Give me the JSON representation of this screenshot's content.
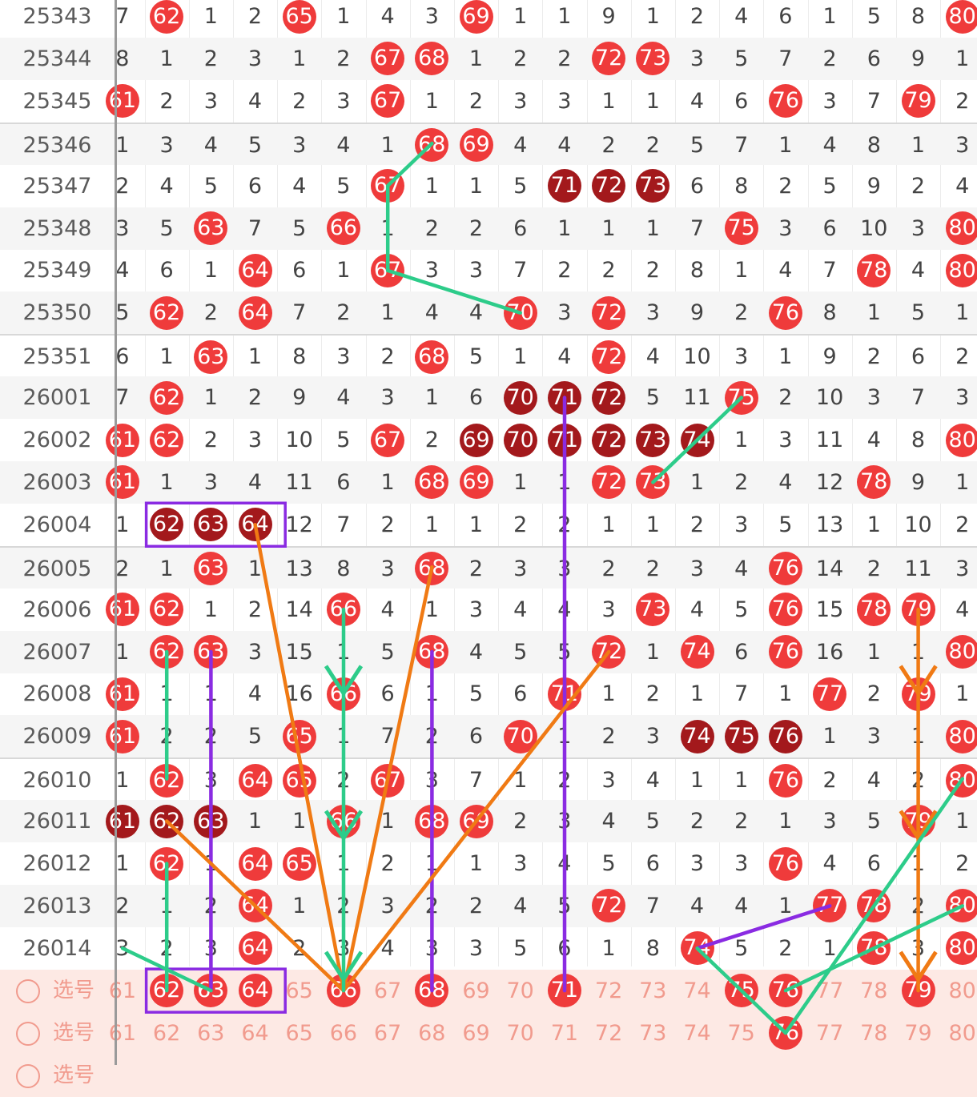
{
  "chart_data": {
    "type": "table",
    "columns": [
      61,
      62,
      63,
      64,
      65,
      66,
      67,
      68,
      69,
      70,
      71,
      72,
      73,
      74,
      75,
      76,
      77,
      78,
      79,
      80
    ],
    "rows": [
      {
        "issue": "25343",
        "values": [
          "7",
          "62",
          "1",
          "2",
          "65",
          "1",
          "4",
          "3",
          "69",
          "1",
          "1",
          "9",
          "1",
          "2",
          "4",
          "6",
          "1",
          "5",
          "8",
          "80"
        ],
        "hits": [
          62,
          65,
          69,
          80
        ],
        "dark": []
      },
      {
        "issue": "25344",
        "values": [
          "8",
          "1",
          "2",
          "3",
          "1",
          "2",
          "67",
          "68",
          "1",
          "2",
          "2",
          "72",
          "73",
          "3",
          "5",
          "7",
          "2",
          "6",
          "9",
          "1"
        ],
        "hits": [
          67,
          68,
          72,
          73
        ],
        "dark": []
      },
      {
        "issue": "25345",
        "values": [
          "61",
          "2",
          "3",
          "4",
          "2",
          "3",
          "67",
          "1",
          "2",
          "3",
          "3",
          "1",
          "1",
          "4",
          "6",
          "76",
          "3",
          "7",
          "79",
          "2"
        ],
        "hits": [
          61,
          67,
          76,
          79
        ],
        "dark": []
      },
      {
        "issue": "25346",
        "values": [
          "1",
          "3",
          "4",
          "5",
          "3",
          "4",
          "1",
          "68",
          "69",
          "4",
          "4",
          "2",
          "2",
          "5",
          "7",
          "1",
          "4",
          "8",
          "1",
          "3"
        ],
        "hits": [
          68,
          69
        ],
        "dark": []
      },
      {
        "issue": "25347",
        "values": [
          "2",
          "4",
          "5",
          "6",
          "4",
          "5",
          "67",
          "1",
          "1",
          "5",
          "71",
          "72",
          "73",
          "6",
          "8",
          "2",
          "5",
          "9",
          "2",
          "4"
        ],
        "hits": [
          67
        ],
        "dark": [
          71,
          72,
          73
        ]
      },
      {
        "issue": "25348",
        "values": [
          "3",
          "5",
          "63",
          "7",
          "5",
          "66",
          "1",
          "2",
          "2",
          "6",
          "1",
          "1",
          "1",
          "7",
          "75",
          "3",
          "6",
          "10",
          "3",
          "80"
        ],
        "hits": [
          63,
          66,
          75,
          80
        ],
        "dark": []
      },
      {
        "issue": "25349",
        "values": [
          "4",
          "6",
          "1",
          "64",
          "6",
          "1",
          "67",
          "3",
          "3",
          "7",
          "2",
          "2",
          "2",
          "8",
          "1",
          "4",
          "7",
          "78",
          "4",
          "80"
        ],
        "hits": [
          64,
          67,
          78,
          80
        ],
        "dark": []
      },
      {
        "issue": "25350",
        "values": [
          "5",
          "62",
          "2",
          "64",
          "7",
          "2",
          "1",
          "4",
          "4",
          "70",
          "3",
          "72",
          "3",
          "9",
          "2",
          "76",
          "8",
          "1",
          "5",
          "1"
        ],
        "hits": [
          62,
          64,
          70,
          72,
          76
        ],
        "dark": []
      },
      {
        "issue": "25351",
        "values": [
          "6",
          "1",
          "63",
          "1",
          "8",
          "3",
          "2",
          "68",
          "5",
          "1",
          "4",
          "72",
          "4",
          "10",
          "3",
          "1",
          "9",
          "2",
          "6",
          "2"
        ],
        "hits": [
          63,
          68,
          72
        ],
        "dark": []
      },
      {
        "issue": "26001",
        "values": [
          "7",
          "62",
          "1",
          "2",
          "9",
          "4",
          "3",
          "1",
          "6",
          "70",
          "71",
          "72",
          "5",
          "11",
          "75",
          "2",
          "10",
          "3",
          "7",
          "3"
        ],
        "hits": [
          62,
          75
        ],
        "dark": [
          70,
          71,
          72
        ]
      },
      {
        "issue": "26002",
        "values": [
          "61",
          "62",
          "2",
          "3",
          "10",
          "5",
          "67",
          "2",
          "69",
          "70",
          "71",
          "72",
          "73",
          "74",
          "1",
          "3",
          "11",
          "4",
          "8",
          "80"
        ],
        "hits": [
          61,
          62,
          67,
          80
        ],
        "dark": [
          69,
          70,
          71,
          72,
          73,
          74
        ]
      },
      {
        "issue": "26003",
        "values": [
          "61",
          "1",
          "3",
          "4",
          "11",
          "6",
          "1",
          "68",
          "69",
          "1",
          "1",
          "72",
          "73",
          "1",
          "2",
          "4",
          "12",
          "78",
          "9",
          "1"
        ],
        "hits": [
          61,
          68,
          69,
          72,
          73,
          78
        ],
        "dark": []
      },
      {
        "issue": "26004",
        "values": [
          "1",
          "62",
          "63",
          "64",
          "12",
          "7",
          "2",
          "1",
          "1",
          "2",
          "2",
          "1",
          "1",
          "2",
          "3",
          "5",
          "13",
          "1",
          "10",
          "2"
        ],
        "hits": [],
        "dark": [
          62,
          63,
          64
        ]
      },
      {
        "issue": "26005",
        "values": [
          "2",
          "1",
          "63",
          "1",
          "13",
          "8",
          "3",
          "68",
          "2",
          "3",
          "3",
          "2",
          "2",
          "3",
          "4",
          "76",
          "14",
          "2",
          "11",
          "3"
        ],
        "hits": [
          63,
          68,
          76
        ],
        "dark": []
      },
      {
        "issue": "26006",
        "values": [
          "61",
          "62",
          "1",
          "2",
          "14",
          "66",
          "4",
          "1",
          "3",
          "4",
          "4",
          "3",
          "73",
          "4",
          "5",
          "76",
          "15",
          "78",
          "79",
          "4"
        ],
        "hits": [
          61,
          62,
          66,
          73,
          76,
          78,
          79
        ],
        "dark": []
      },
      {
        "issue": "26007",
        "values": [
          "1",
          "62",
          "63",
          "3",
          "15",
          "1",
          "5",
          "68",
          "4",
          "5",
          "5",
          "72",
          "1",
          "74",
          "6",
          "76",
          "16",
          "1",
          "1",
          "80"
        ],
        "hits": [
          62,
          63,
          68,
          72,
          74,
          76,
          80
        ],
        "dark": []
      },
      {
        "issue": "26008",
        "values": [
          "61",
          "1",
          "1",
          "4",
          "16",
          "66",
          "6",
          "1",
          "5",
          "6",
          "71",
          "1",
          "2",
          "1",
          "7",
          "1",
          "77",
          "2",
          "79",
          "1"
        ],
        "hits": [
          61,
          66,
          71,
          77,
          79
        ],
        "dark": []
      },
      {
        "issue": "26009",
        "values": [
          "61",
          "2",
          "2",
          "5",
          "65",
          "1",
          "7",
          "2",
          "6",
          "70",
          "1",
          "2",
          "3",
          "74",
          "75",
          "76",
          "1",
          "3",
          "1",
          "80"
        ],
        "hits": [
          61,
          65,
          70,
          80
        ],
        "dark": [
          74,
          75,
          76
        ]
      },
      {
        "issue": "26010",
        "values": [
          "1",
          "62",
          "3",
          "64",
          "65",
          "2",
          "67",
          "3",
          "7",
          "1",
          "2",
          "3",
          "4",
          "1",
          "1",
          "76",
          "2",
          "4",
          "2",
          "80"
        ],
        "hits": [
          62,
          64,
          65,
          67,
          76,
          80
        ],
        "dark": []
      },
      {
        "issue": "26011",
        "values": [
          "61",
          "62",
          "63",
          "1",
          "1",
          "66",
          "1",
          "68",
          "69",
          "2",
          "3",
          "4",
          "5",
          "2",
          "2",
          "1",
          "3",
          "5",
          "79",
          "1"
        ],
        "hits": [
          66,
          68,
          69,
          79
        ],
        "dark": [
          61,
          62,
          63
        ]
      },
      {
        "issue": "26012",
        "values": [
          "1",
          "62",
          "1",
          "64",
          "65",
          "1",
          "2",
          "1",
          "1",
          "3",
          "4",
          "5",
          "6",
          "3",
          "3",
          "76",
          "4",
          "6",
          "1",
          "2"
        ],
        "hits": [
          62,
          64,
          65,
          76
        ],
        "dark": []
      },
      {
        "issue": "26013",
        "values": [
          "2",
          "1",
          "2",
          "64",
          "1",
          "2",
          "3",
          "2",
          "2",
          "4",
          "5",
          "72",
          "7",
          "4",
          "4",
          "1",
          "77",
          "78",
          "2",
          "80"
        ],
        "hits": [
          64,
          72,
          77,
          78,
          80
        ],
        "dark": []
      },
      {
        "issue": "26014",
        "values": [
          "3",
          "2",
          "3",
          "64",
          "2",
          "3",
          "4",
          "3",
          "3",
          "5",
          "6",
          "1",
          "8",
          "74",
          "5",
          "2",
          "1",
          "78",
          "3",
          "80"
        ],
        "hits": [
          64,
          74,
          78,
          80
        ],
        "dark": []
      }
    ],
    "pick_rows": [
      {
        "label": "选号",
        "values": [
          "61",
          "62",
          "63",
          "64",
          "65",
          "66",
          "67",
          "68",
          "69",
          "70",
          "71",
          "72",
          "73",
          "74",
          "75",
          "76",
          "77",
          "78",
          "79",
          "80"
        ],
        "hits": [
          62,
          63,
          64,
          66,
          68,
          71,
          75,
          76,
          79
        ]
      },
      {
        "label": "选号",
        "values": [
          "61",
          "62",
          "63",
          "64",
          "65",
          "66",
          "67",
          "68",
          "69",
          "70",
          "71",
          "72",
          "73",
          "74",
          "75",
          "76",
          "77",
          "78",
          "79",
          "80"
        ],
        "hits": [
          76
        ]
      },
      {
        "label": "选号",
        "values": [],
        "hits": []
      }
    ],
    "annotations": [
      {
        "color": "#2dcc8a",
        "type": "line",
        "from": [
          25346,
          68
        ],
        "to": [
          25347,
          67
        ]
      },
      {
        "color": "#2dcc8a",
        "type": "line",
        "from": [
          25347,
          67
        ],
        "to": [
          25349,
          67
        ]
      },
      {
        "color": "#2dcc8a",
        "type": "line",
        "from": [
          25349,
          67
        ],
        "to": [
          25350,
          70
        ]
      },
      {
        "color": "#2dcc8a",
        "type": "line",
        "from": [
          26001,
          75
        ],
        "to": [
          26003,
          73
        ]
      },
      {
        "color": "#8a2be2",
        "type": "line",
        "from": [
          26001,
          71
        ],
        "to": [
          "pick",
          71
        ]
      },
      {
        "color": "#8a2be2",
        "type": "box",
        "row": 26004,
        "from": 62,
        "to": 64
      },
      {
        "color": "#8a2be2",
        "type": "box",
        "row": "pick",
        "from": 62,
        "to": 64
      },
      {
        "color": "#8a2be2",
        "type": "line",
        "from": [
          26007,
          63
        ],
        "to": [
          "pick",
          63
        ]
      },
      {
        "color": "#8a2be2",
        "type": "line",
        "from": [
          26007,
          68
        ],
        "to": [
          "pick",
          68
        ]
      },
      {
        "color": "#8a2be2",
        "type": "line",
        "from": [
          26014,
          74
        ],
        "to": [
          26013,
          77
        ]
      },
      {
        "color": "#f07a14",
        "type": "line",
        "from": [
          26004,
          64
        ],
        "to": [
          "pick",
          66
        ]
      },
      {
        "color": "#f07a14",
        "type": "line",
        "from": [
          26005,
          68
        ],
        "to": [
          "pick",
          66
        ]
      },
      {
        "color": "#f07a14",
        "type": "line",
        "from": [
          26007,
          72
        ],
        "to": [
          "pick",
          66
        ]
      },
      {
        "color": "#f07a14",
        "type": "line",
        "from": [
          26011,
          62
        ],
        "to": [
          "pick",
          66
        ]
      },
      {
        "color": "#f07a14",
        "type": "arrow",
        "from": [
          26006,
          79
        ],
        "to": [
          "pick",
          79
        ]
      },
      {
        "color": "#2dcc8a",
        "type": "arrow",
        "from": [
          26006,
          66
        ],
        "to": [
          "pick",
          66
        ]
      },
      {
        "color": "#2dcc8a",
        "type": "line",
        "from": [
          26007,
          62
        ],
        "to": [
          26010,
          62
        ]
      },
      {
        "color": "#2dcc8a",
        "type": "line",
        "from": [
          26012,
          62
        ],
        "to": [
          "pick",
          62
        ]
      },
      {
        "color": "#2dcc8a",
        "type": "line",
        "from": [
          26014,
          61
        ],
        "to": [
          "pick",
          63
        ]
      },
      {
        "color": "#2dcc8a",
        "type": "line",
        "from": [
          26014,
          74
        ],
        "to": [
          "pick2",
          76
        ]
      },
      {
        "color": "#2dcc8a",
        "type": "line",
        "from": [
          "pick2",
          76
        ],
        "to": [
          26010,
          80
        ]
      },
      {
        "color": "#2dcc8a",
        "type": "line",
        "from": [
          "pick",
          76
        ],
        "to": [
          26013,
          80
        ]
      }
    ]
  },
  "colors": {
    "hit": "#ef3b3b",
    "dark": "#a3191c",
    "green": "#2dcc8a",
    "purple": "#8a2be2",
    "orange": "#f07a14",
    "pick_text": "#f19b8e"
  }
}
